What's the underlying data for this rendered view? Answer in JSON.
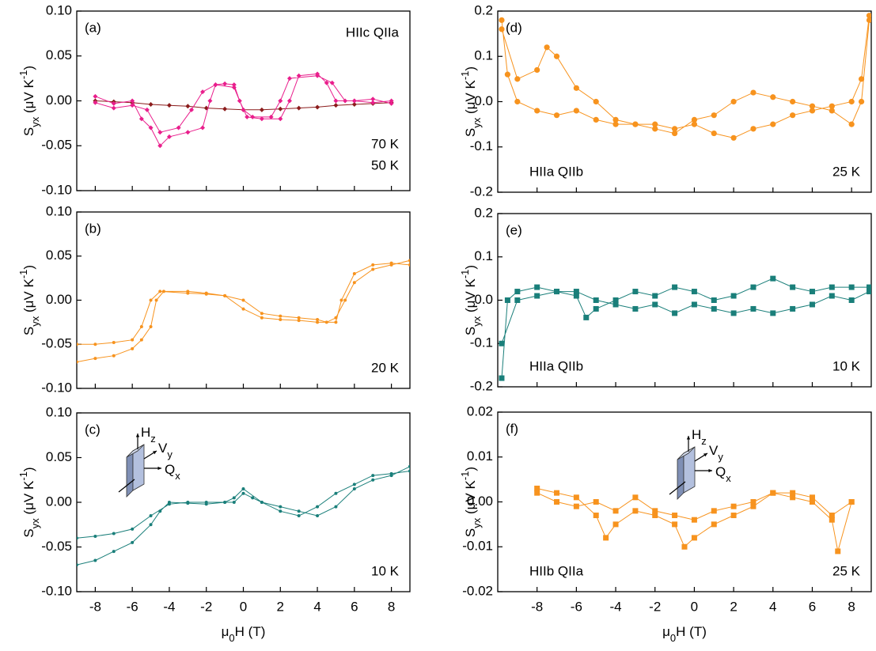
{
  "chart_data": [
    {
      "type": "line",
      "panel": "(a)",
      "sample": "HIIc QIIa",
      "legend_text": "colored",
      "marker": "diamond",
      "xlim": [
        -9,
        9
      ],
      "xticks": [
        -8,
        -6,
        -4,
        -2,
        0,
        2,
        4,
        6,
        8
      ],
      "ylim": [
        -0.1,
        0.1
      ],
      "yticks": [
        {
          "value": -0.1,
          "label": "-0.10"
        },
        -0.05,
        {
          "value": 0,
          "label": "0.00"
        },
        0.05,
        {
          "value": 0.1,
          "label": "0.10"
        }
      ],
      "ylabel": [
        "S",
        "yx",
        " (μV K",
        "-1",
        ")"
      ],
      "series": [
        {
          "name": "70 K",
          "color": "#8b1c1c",
          "x": [
            -8,
            -7,
            -6,
            -5,
            -4,
            -3,
            -2,
            -1,
            0,
            1,
            2,
            3,
            4,
            5,
            6,
            7,
            8
          ],
          "values": [
            0,
            -0.001,
            -0.002,
            -0.004,
            -0.005,
            -0.006,
            -0.008,
            -0.009,
            -0.01,
            -0.01,
            -0.009,
            -0.008,
            -0.007,
            -0.005,
            -0.004,
            -0.003,
            -0.002
          ]
        },
        {
          "name": "50 K",
          "color": "#e91e8c",
          "x": [
            -8,
            -7,
            -6,
            -5.5,
            -5,
            -4.5,
            -4,
            -3,
            -2.2,
            -1.8,
            -1.5,
            -1,
            -0.5,
            -0.2,
            0.2,
            1,
            2,
            2.5,
            3,
            4,
            4.5,
            5,
            6,
            7,
            8,
            8,
            7,
            6,
            5.5,
            4.8,
            4,
            2.5,
            2,
            1.5,
            0.5,
            0,
            -0.5,
            -1.5,
            -2.2,
            -2.8,
            -3.5,
            -4.5,
            -5.2,
            -6,
            -7,
            -8
          ],
          "values": [
            0.005,
            -0.003,
            0,
            -0.02,
            -0.03,
            -0.05,
            -0.04,
            -0.035,
            -0.03,
            0,
            0.018,
            0.019,
            0.018,
            0,
            -0.018,
            -0.02,
            -0.02,
            0,
            0.028,
            0.03,
            0.02,
            0,
            0,
            -0.002,
            0,
            -0.003,
            0.002,
            0,
            0,
            0.02,
            0.028,
            0.025,
            0,
            -0.018,
            -0.018,
            -0.01,
            0.015,
            0.018,
            0.01,
            -0.01,
            -0.03,
            -0.035,
            -0.01,
            -0.005,
            -0.008,
            -0.002
          ]
        }
      ]
    },
    {
      "type": "line",
      "panel": "(b)",
      "marker": "dot",
      "xlim": [
        -9,
        9
      ],
      "xticks": [
        -8,
        -6,
        -4,
        -2,
        0,
        2,
        4,
        6,
        8
      ],
      "ylim": [
        -0.1,
        0.1
      ],
      "yticks": [
        {
          "value": -0.1,
          "label": "-0.10"
        },
        -0.05,
        {
          "value": 0,
          "label": "0.00"
        },
        0.05,
        {
          "value": 0.1,
          "label": "0.10"
        }
      ],
      "ylabel": [
        "S",
        "yx",
        " (μV K",
        "-1",
        ")"
      ],
      "series": [
        {
          "name": "20 K",
          "color": "#f7931e",
          "x": [
            -9,
            -8,
            -7,
            -6,
            -5.5,
            -5,
            -4.7,
            -4.3,
            -3,
            -2,
            -1,
            0,
            1,
            2,
            3,
            4,
            4.5,
            5,
            5.5,
            6,
            7,
            8,
            9,
            9,
            8,
            7,
            6,
            5.3,
            5,
            4,
            3,
            2,
            1,
            0,
            -1,
            -2,
            -3,
            -4.5,
            -5,
            -5.5,
            -6,
            -7,
            -8,
            -9
          ],
          "values": [
            -0.07,
            -0.066,
            -0.063,
            -0.055,
            -0.045,
            -0.03,
            0,
            0.01,
            0.01,
            0.008,
            0.005,
            0,
            -0.015,
            -0.018,
            -0.02,
            -0.022,
            -0.025,
            -0.02,
            0,
            0.02,
            0.035,
            0.04,
            0.045,
            0.04,
            0.042,
            0.04,
            0.03,
            0,
            -0.025,
            -0.025,
            -0.023,
            -0.022,
            -0.02,
            -0.01,
            0.005,
            0.007,
            0.008,
            0.01,
            0,
            -0.03,
            -0.045,
            -0.048,
            -0.05,
            -0.05
          ]
        }
      ]
    },
    {
      "type": "line",
      "panel": "(c)",
      "marker": "dot",
      "xlim": [
        -9,
        9
      ],
      "xticks": [
        -8,
        -6,
        -4,
        -2,
        0,
        2,
        4,
        6,
        8
      ],
      "ylim": [
        -0.1,
        0.1
      ],
      "yticks": [
        {
          "value": -0.1,
          "label": "-0.10"
        },
        -0.05,
        {
          "value": 0,
          "label": "0.00"
        },
        0.05,
        {
          "value": 0.1,
          "label": "0.10"
        }
      ],
      "ylabel": [
        "S",
        "yx",
        " (μV K",
        "-1",
        ")"
      ],
      "xlabel": [
        "μ",
        "0",
        "H (T)"
      ],
      "inset": [
        [
          "H",
          "z"
        ],
        [
          "V",
          "y"
        ],
        [
          "Q",
          "x"
        ]
      ],
      "series": [
        {
          "name": "10 K",
          "color": "#1a7f7a",
          "x": [
            -9,
            -8,
            -7,
            -6,
            -5,
            -4.5,
            -4,
            -3,
            -2,
            -1,
            -0.5,
            0,
            0.5,
            1,
            2,
            3,
            4,
            5,
            6,
            7,
            8,
            9,
            9,
            8,
            7,
            6,
            5,
            4,
            3,
            2,
            1,
            0,
            -0.5,
            -1,
            -2,
            -3,
            -4,
            -5,
            -6,
            -7,
            -8,
            -9
          ],
          "values": [
            -0.07,
            -0.065,
            -0.055,
            -0.045,
            -0.025,
            -0.01,
            0,
            -0.001,
            -0.002,
            0,
            0,
            0.01,
            0.005,
            0,
            -0.005,
            -0.01,
            -0.015,
            -0.005,
            0.015,
            0.025,
            0.03,
            0.04,
            0.035,
            0.032,
            0.03,
            0.02,
            0.01,
            -0.005,
            -0.015,
            -0.01,
            0,
            0.015,
            0.005,
            0,
            0,
            0,
            -0.002,
            -0.015,
            -0.03,
            -0.035,
            -0.038,
            -0.04
          ]
        }
      ]
    },
    {
      "type": "line",
      "panel": "(d)",
      "sample": "HIIa  QIIb",
      "marker": "circle",
      "xlim": [
        -10,
        9
      ],
      "xticks": [
        -8,
        -6,
        -4,
        -2,
        0,
        2,
        4,
        6,
        8
      ],
      "ylim": [
        -0.2,
        0.2
      ],
      "yticks": [
        -0.2,
        -0.1,
        {
          "value": 0,
          "label": "0.0"
        },
        0.1,
        0.2
      ],
      "ylabel": [
        "S",
        "yx",
        " (μV K",
        "-1",
        ")"
      ],
      "series": [
        {
          "name": "25 K",
          "color": "#f7931e",
          "x": [
            -9.8,
            -9.5,
            -9,
            -8,
            -7,
            -6,
            -5,
            -4,
            -3,
            -2,
            -1,
            0,
            1,
            2,
            3,
            4,
            5,
            6,
            7,
            8,
            8.5,
            8.9,
            8.9,
            8.5,
            8,
            7,
            6,
            5,
            4,
            3,
            2,
            1,
            0,
            -1,
            -2,
            -3,
            -4,
            -5,
            -6,
            -7,
            -7.5,
            -8,
            -9,
            -9.8
          ],
          "values": [
            0.18,
            0.06,
            0,
            -0.02,
            -0.03,
            -0.02,
            -0.04,
            -0.05,
            -0.05,
            -0.06,
            -0.07,
            -0.04,
            -0.03,
            0,
            0.02,
            0.01,
            0,
            -0.01,
            -0.02,
            -0.05,
            0,
            0.18,
            0.19,
            0.05,
            0,
            -0.01,
            -0.02,
            -0.03,
            -0.05,
            -0.06,
            -0.08,
            -0.07,
            -0.05,
            -0.06,
            -0.05,
            -0.05,
            -0.04,
            0,
            0.03,
            0.1,
            0.12,
            0.07,
            0.05,
            0.16
          ]
        }
      ]
    },
    {
      "type": "line",
      "panel": "(e)",
      "sample": "HIIa  QIIb",
      "marker": "square",
      "xlim": [
        -10,
        9
      ],
      "xticks": [
        -8,
        -6,
        -4,
        -2,
        0,
        2,
        4,
        6,
        8
      ],
      "ylim": [
        -0.2,
        0.2
      ],
      "yticks": [
        -0.2,
        -0.1,
        {
          "value": 0,
          "label": "0.0"
        },
        0.1,
        0.2
      ],
      "ylabel": [
        "S",
        "yx",
        " (μV K",
        "-1",
        ")"
      ],
      "series": [
        {
          "name": "10 K",
          "color": "#1a7f7a",
          "x": [
            -9.8,
            -9.5,
            -9,
            -8,
            -7,
            -6,
            -5.5,
            -5,
            -4,
            -3,
            -2,
            -1,
            0,
            1,
            2,
            3,
            4,
            5,
            6,
            7,
            8,
            8.9,
            8.9,
            8,
            7,
            6,
            5,
            4,
            3,
            2,
            1,
            0,
            -1,
            -2,
            -3,
            -4,
            -5,
            -6,
            -7,
            -8,
            -9,
            -9.8
          ],
          "values": [
            -0.18,
            0,
            0.02,
            0.03,
            0.02,
            0.01,
            -0.04,
            -0.02,
            0,
            0.02,
            0.01,
            0.03,
            0.02,
            0,
            0.01,
            0.03,
            0.05,
            0.03,
            0.02,
            0.03,
            0.03,
            0.03,
            0.02,
            0,
            0.01,
            -0.01,
            -0.02,
            -0.03,
            -0.02,
            -0.03,
            -0.02,
            -0.01,
            -0.03,
            -0.01,
            -0.02,
            -0.01,
            0,
            0.02,
            0.02,
            0.01,
            0,
            -0.1
          ]
        }
      ]
    },
    {
      "type": "line",
      "panel": "(f)",
      "sample": "HIIb   QIIa",
      "marker": "square",
      "xlim": [
        -10,
        9
      ],
      "xticks": [
        -8,
        -6,
        -4,
        -2,
        0,
        2,
        4,
        6,
        8
      ],
      "ylim": [
        -0.02,
        0.02
      ],
      "yticks": [
        -0.02,
        -0.01,
        {
          "value": 0,
          "label": "0.00"
        },
        0.01,
        0.02
      ],
      "ylabel": [
        "S",
        "yx",
        " (μV K",
        "-1",
        ")"
      ],
      "xlabel": [
        "μ",
        "0",
        "H (T)"
      ],
      "inset": [
        [
          "H",
          "z"
        ],
        [
          "V",
          "y"
        ],
        [
          "Q",
          "x"
        ]
      ],
      "series": [
        {
          "name": "25 K",
          "color": "#f7931e",
          "x": [
            -8,
            -7,
            -6,
            -5,
            -4.5,
            -4,
            -3,
            -2,
            -1,
            -0.5,
            0,
            1,
            2,
            3,
            4,
            5,
            6,
            7,
            7.3,
            8,
            8,
            7,
            6,
            5,
            4,
            3,
            2,
            1,
            0,
            -1,
            -2,
            -3,
            -4,
            -5,
            -6,
            -7,
            -8
          ],
          "values": [
            0.003,
            0.002,
            0.001,
            -0.003,
            -0.008,
            -0.005,
            -0.002,
            -0.003,
            -0.005,
            -0.01,
            -0.008,
            -0.005,
            -0.003,
            -0.001,
            0.002,
            0.001,
            0,
            -0.004,
            -0.011,
            0,
            0,
            -0.003,
            0.001,
            0.002,
            0.002,
            0,
            -0.001,
            -0.002,
            -0.004,
            -0.003,
            -0.002,
            0.001,
            -0.002,
            0,
            -0.001,
            0,
            0.002
          ]
        }
      ]
    }
  ]
}
